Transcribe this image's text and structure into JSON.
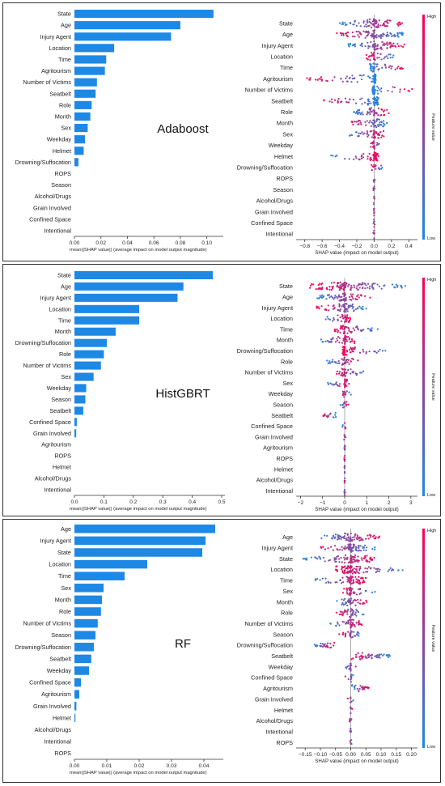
{
  "colors": {
    "bar": "#1e88e5",
    "low": "#1e88e5",
    "high": "#ff0052",
    "axis": "#333333",
    "zero": "#999999"
  },
  "colorbar": {
    "high_label": "High",
    "low_label": "Low",
    "title": "Feature value"
  },
  "chart_data": [
    {
      "type": "bar",
      "model_label": "Adaboost",
      "xlabel": "mean(|SHAP value|) (average impact on model output magnitude)",
      "categories": [
        "State",
        "Age",
        "Injury Agent",
        "Location",
        "Time",
        "Agritourism",
        "Number of Victims",
        "Seatbelt",
        "Role",
        "Month",
        "Sex",
        "Weekday",
        "Helmet",
        "Drowning/Suffocation",
        "ROPS",
        "Season",
        "Alcohol/Drugs",
        "Grain Involved",
        "Confined Space",
        "Intentional"
      ],
      "values": [
        0.105,
        0.08,
        0.073,
        0.03,
        0.024,
        0.023,
        0.017,
        0.016,
        0.013,
        0.012,
        0.01,
        0.008,
        0.007,
        0.003,
        0,
        0,
        0,
        0,
        0,
        0
      ],
      "xlim": [
        0,
        0.11
      ],
      "xticks": [
        0,
        0.02,
        0.04,
        0.06,
        0.08,
        0.1
      ],
      "xtick_labels": [
        "0.00",
        "0.02",
        "0.04",
        "0.06",
        "0.08",
        "0.10"
      ]
    },
    {
      "type": "scatter",
      "model_label": "Adaboost",
      "xlabel": "SHAP value (impact on model output)",
      "categories": [
        "State",
        "Age",
        "Injury Agent",
        "Location",
        "Time",
        "Agritourism",
        "Number of Victims",
        "Seatbelt",
        "Role",
        "Month",
        "Sex",
        "Weekday",
        "Helmet",
        "Drowning/Suffocation",
        "ROPS",
        "Season",
        "Alcohol/Drugs",
        "Grain Involved",
        "Confined Space",
        "Intentional"
      ],
      "spread": [
        [
          -0.4,
          0.35
        ],
        [
          -0.45,
          0.35
        ],
        [
          -0.3,
          0.35
        ],
        [
          -0.1,
          0.25
        ],
        [
          -0.05,
          0.35
        ],
        [
          -0.8,
          0.02
        ],
        [
          -0.02,
          0.45
        ],
        [
          -0.6,
          0.05
        ],
        [
          -0.25,
          0.2
        ],
        [
          -0.3,
          0.15
        ],
        [
          -0.3,
          0.12
        ],
        [
          -0.05,
          0.1
        ],
        [
          -0.5,
          0.05
        ],
        [
          -0.03,
          0.1
        ],
        [
          -0.01,
          0.01
        ],
        [
          -0.01,
          0.01
        ],
        [
          -0.01,
          0.01
        ],
        [
          -0.01,
          0.01
        ],
        [
          -0.01,
          0.01
        ],
        [
          -0.01,
          0.01
        ]
      ],
      "xlim": [
        -0.9,
        0.5
      ],
      "xticks": [
        -0.8,
        -0.6,
        -0.4,
        -0.2,
        0.0,
        0.2,
        0.4
      ],
      "xtick_labels": [
        "−0.8",
        "−0.6",
        "−0.4",
        "−0.2",
        "0.0",
        "0.2",
        "0.4"
      ]
    },
    {
      "type": "bar",
      "model_label": "HistGBRT",
      "xlabel": "mean(|SHAP value|) (average impact on model output magnitude)",
      "categories": [
        "State",
        "Age",
        "Injury Agent",
        "Location",
        "Time",
        "Month",
        "Drowning/Suffocation",
        "Role",
        "Number of Victims",
        "Sex",
        "Weekday",
        "Season",
        "Seatbelt",
        "Confined Space",
        "Grain Involved",
        "Agritourism",
        "ROPS",
        "Helmet",
        "Alcohol/Drugs",
        "Intentional"
      ],
      "values": [
        0.47,
        0.37,
        0.35,
        0.22,
        0.22,
        0.14,
        0.11,
        0.1,
        0.09,
        0.065,
        0.04,
        0.037,
        0.03,
        0.008,
        0.006,
        0,
        0,
        0,
        0,
        0
      ],
      "xlim": [
        0,
        0.5
      ],
      "xticks": [
        0,
        0.1,
        0.2,
        0.3,
        0.4,
        0.5
      ],
      "xtick_labels": [
        "0.0",
        "0.1",
        "0.2",
        "0.3",
        "0.4",
        "0.5"
      ]
    },
    {
      "type": "scatter",
      "model_label": "HistGBRT",
      "xlabel": "SHAP value (impact on model output)",
      "categories": [
        "State",
        "Age",
        "Injury Agent",
        "Location",
        "Time",
        "Month",
        "Drowning/Suffocation",
        "Role",
        "Number of Victims",
        "Sex",
        "Weekday",
        "Season",
        "Seatbelt",
        "Confined Space",
        "Grain Involved",
        "Agritourism",
        "ROPS",
        "Helmet",
        "Alcohol/Drugs",
        "Intentional"
      ],
      "spread": [
        [
          -1.6,
          2.9
        ],
        [
          -1.3,
          1.2
        ],
        [
          -1.3,
          1.0
        ],
        [
          -1.0,
          0.3
        ],
        [
          -0.5,
          1.5
        ],
        [
          -1.2,
          0.5
        ],
        [
          -0.1,
          2.1
        ],
        [
          -0.8,
          0.6
        ],
        [
          -0.4,
          1.0
        ],
        [
          -0.8,
          0.2
        ],
        [
          -0.2,
          0.3
        ],
        [
          -0.2,
          0.2
        ],
        [
          -1.0,
          -0.4
        ],
        [
          -0.1,
          0.05
        ],
        [
          -0.05,
          0.05
        ],
        [
          -0.02,
          0.02
        ],
        [
          -0.02,
          0.02
        ],
        [
          -0.02,
          0.02
        ],
        [
          -0.02,
          0.02
        ],
        [
          -0.02,
          0.02
        ]
      ],
      "xlim": [
        -2.2,
        3.3
      ],
      "xticks": [
        -2,
        -1,
        0,
        1,
        2,
        3
      ],
      "xtick_labels": [
        "−2",
        "−1",
        "0",
        "1",
        "2",
        "3"
      ]
    },
    {
      "type": "bar",
      "model_label": "RF",
      "xlabel": "mean(|SHAP value|) (average impact on model output magnitude)",
      "categories": [
        "Age",
        "Injury Agent",
        "State",
        "Location",
        "Time",
        "Sex",
        "Month",
        "Role",
        "Number of Victims",
        "Season",
        "Drowning/Suffocation",
        "Seatbelt",
        "Weekday",
        "Confined Space",
        "Agritourism",
        "Grain Involved",
        "Helmet",
        "Alcohol/Drugs",
        "Intentional",
        "ROPS"
      ],
      "values": [
        0.0435,
        0.0405,
        0.0395,
        0.0225,
        0.0155,
        0.009,
        0.0085,
        0.0082,
        0.0072,
        0.0065,
        0.006,
        0.0052,
        0.0045,
        0.002,
        0.0015,
        0.0006,
        0.0003,
        0,
        0,
        0
      ],
      "xlim": [
        0,
        0.045
      ],
      "xticks": [
        0,
        0.01,
        0.02,
        0.03,
        0.04
      ],
      "xtick_labels": [
        "0.00",
        "0.01",
        "0.02",
        "0.03",
        "0.04"
      ]
    },
    {
      "type": "scatter",
      "model_label": "RF",
      "xlabel": "SHAP value (impact on model output)",
      "categories": [
        "Age",
        "Injury Agent",
        "State",
        "Location",
        "Time",
        "Sex",
        "Month",
        "Role",
        "Number of Victims",
        "Season",
        "Drowning/Suffocation",
        "Seatbelt",
        "Weekday",
        "Confined Space",
        "Agritourism",
        "Grain Involved",
        "Helmet",
        "Alcohol/Drugs",
        "Intentional",
        "ROPS"
      ],
      "spread": [
        [
          -0.1,
          0.1
        ],
        [
          -0.1,
          0.08
        ],
        [
          -0.16,
          0.08
        ],
        [
          -0.05,
          0.18
        ],
        [
          -0.13,
          0.05
        ],
        [
          -0.03,
          0.08
        ],
        [
          -0.05,
          0.06
        ],
        [
          -0.05,
          0.05
        ],
        [
          -0.07,
          0.04
        ],
        [
          -0.04,
          0.04
        ],
        [
          -0.12,
          -0.05
        ],
        [
          0.0,
          0.13
        ],
        [
          -0.02,
          0.02
        ],
        [
          -0.02,
          0.01
        ],
        [
          0.0,
          0.06
        ],
        [
          -0.01,
          0.01
        ],
        [
          -0.005,
          0.005
        ],
        [
          -0.005,
          0.005
        ],
        [
          -0.003,
          0.003
        ],
        [
          -0.003,
          0.003
        ]
      ],
      "xlim": [
        -0.18,
        0.22
      ],
      "xticks": [
        -0.15,
        -0.1,
        -0.05,
        0.0,
        0.05,
        0.1,
        0.15,
        0.2
      ],
      "xtick_labels": [
        "−0.15",
        "−0.10",
        "−0.05",
        "0.00",
        "0.05",
        "0.10",
        "0.15",
        "0.20"
      ]
    }
  ]
}
